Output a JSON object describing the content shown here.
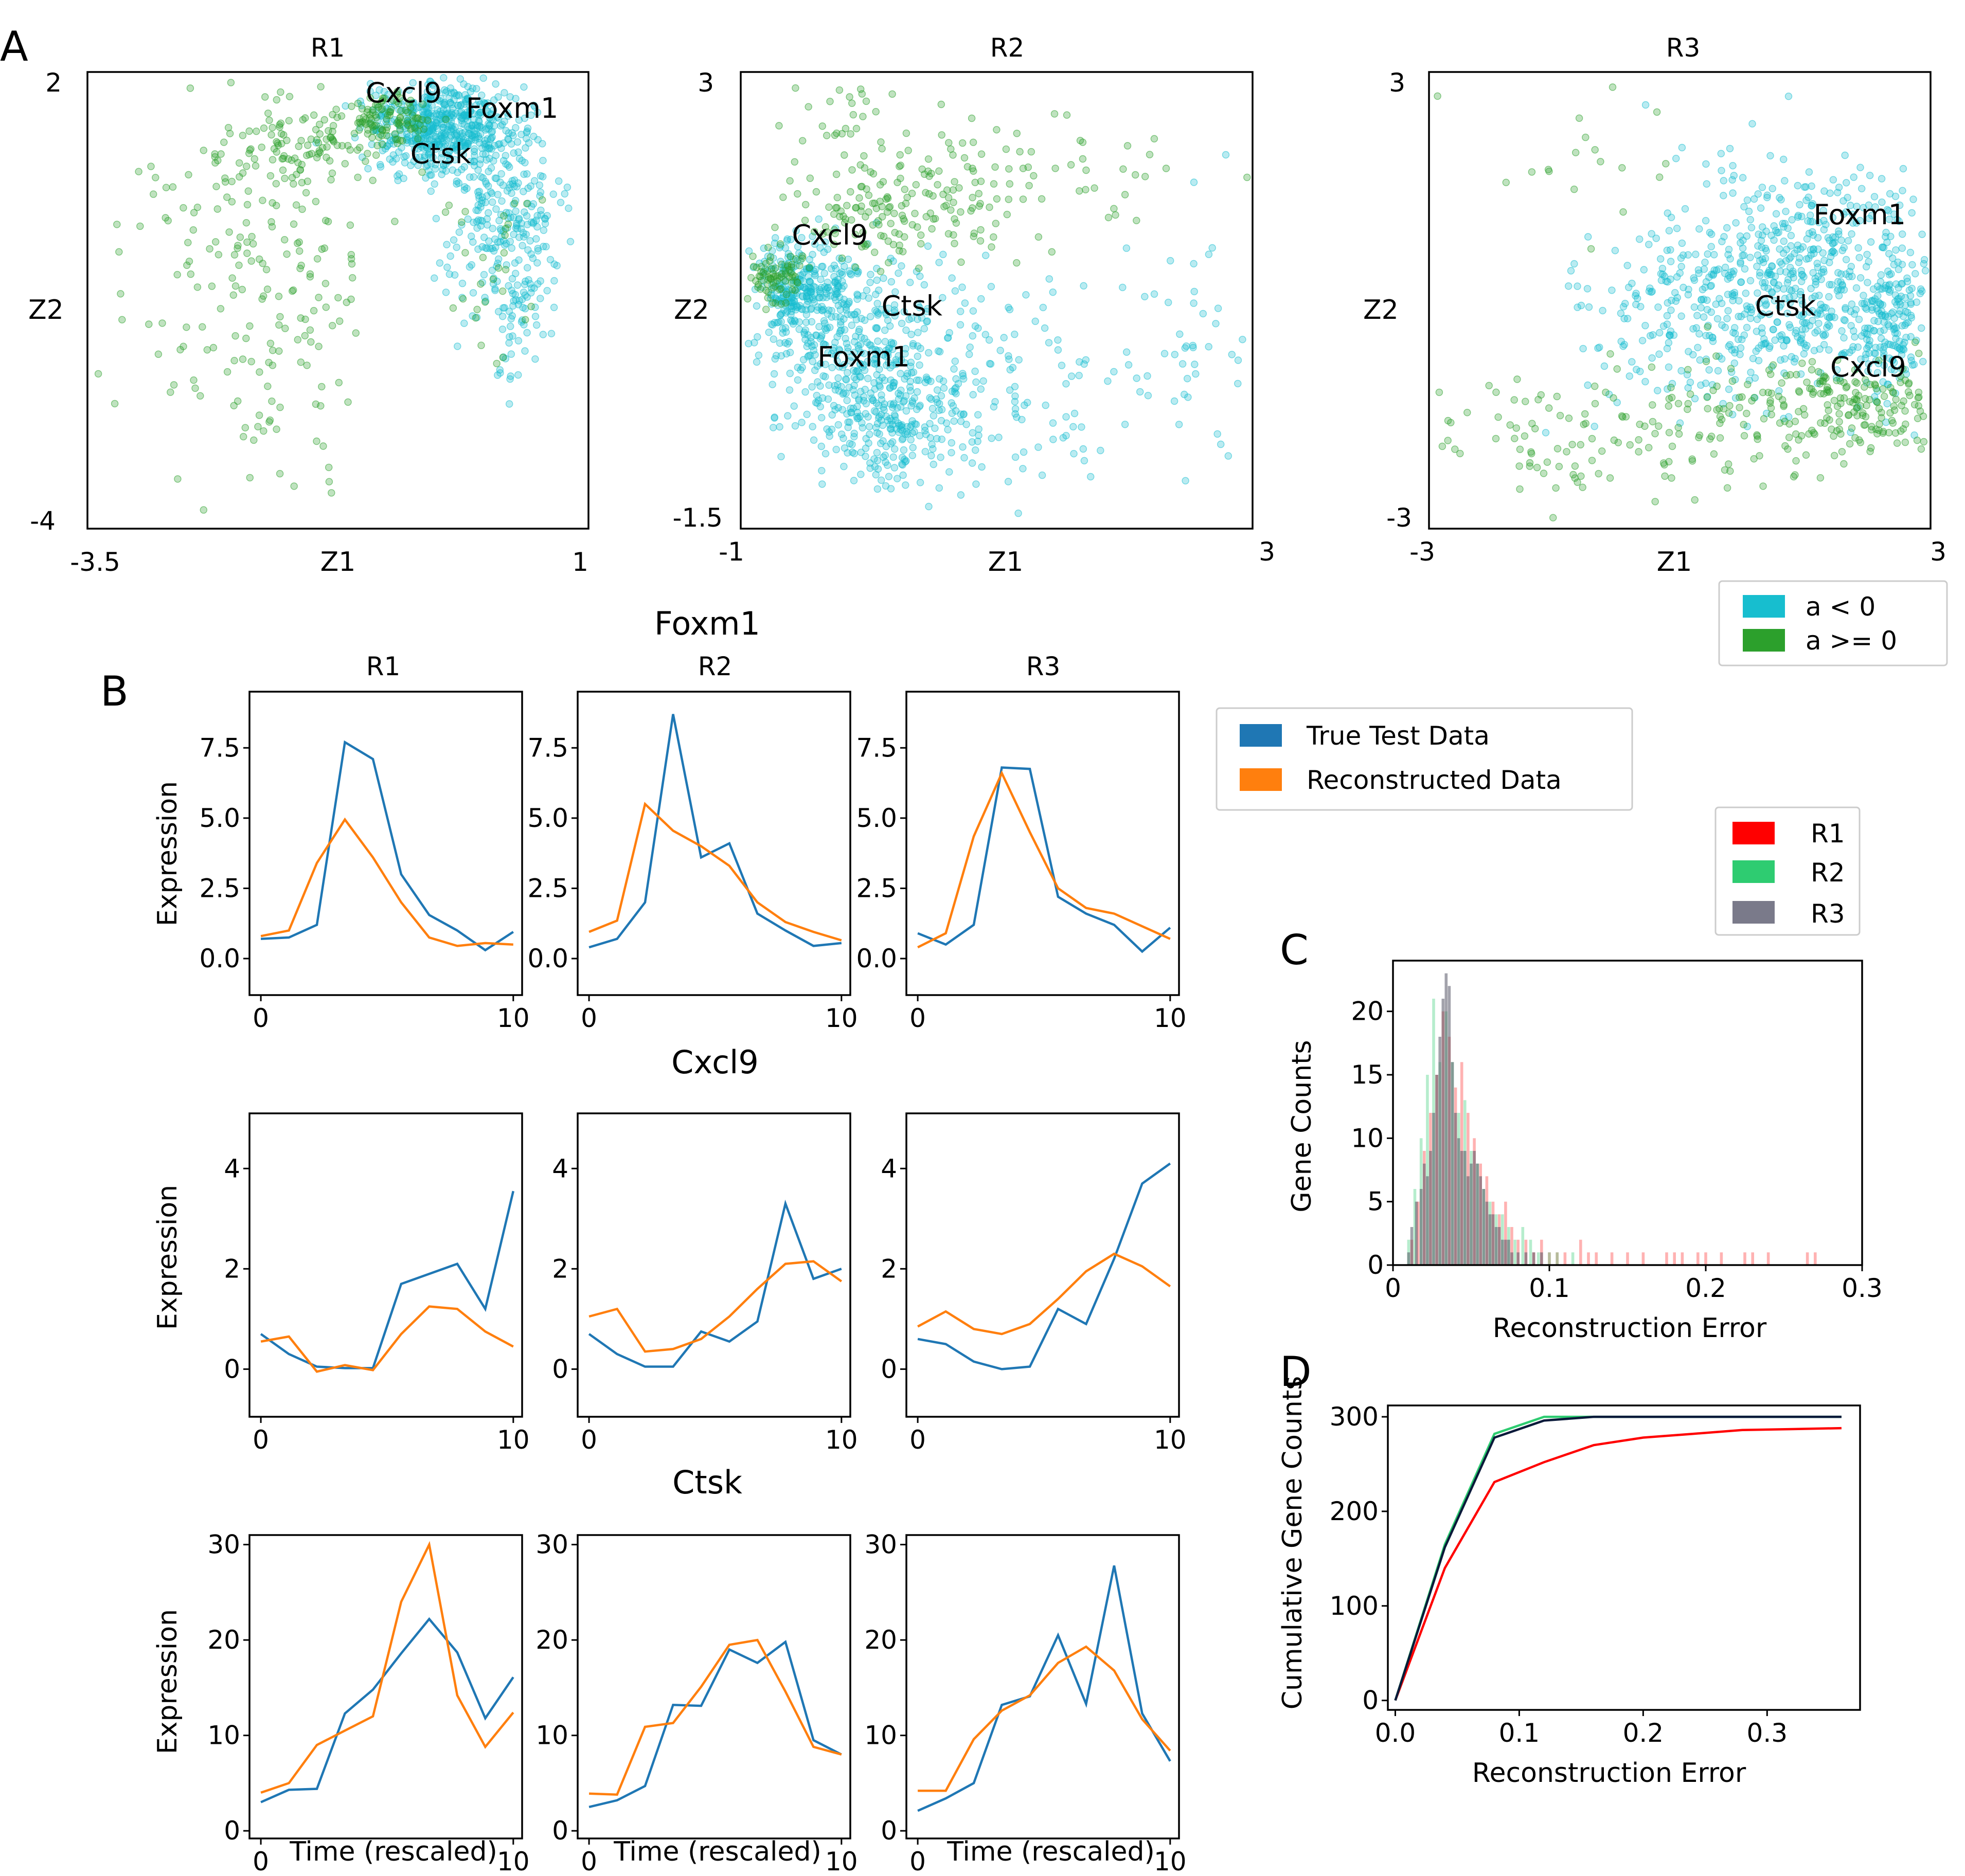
{
  "panel_letters": {
    "a": "A",
    "b": "B",
    "c": "C",
    "d": "D"
  },
  "colors": {
    "cyan": "#17becf",
    "green": "#2ca02c",
    "blue": "#1f77b4",
    "orange": "#ff7f0e",
    "r1": "#ff0000",
    "r2": "#2ecc71",
    "r3": "#555566"
  },
  "chart_data": [
    {
      "id": "A",
      "type": "scatter",
      "xlabel": "Z1",
      "ylabel": "Z2",
      "legend": {
        "placement": "bottom-right",
        "entries": [
          "a  <  0",
          "a >= 0"
        ]
      },
      "subplots": [
        {
          "title": "R1",
          "xlim": [
            -3.5,
            1
          ],
          "ylim": [
            -4,
            2
          ],
          "xtick_labels": [
            "-3.5",
            "1"
          ],
          "ytick_labels": [
            "2",
            "-4"
          ],
          "gene_labels": [
            {
              "name": "Cxcl9",
              "x": -1.0,
              "y": 1.6
            },
            {
              "name": "Foxm1",
              "x": -0.1,
              "y": 1.4
            },
            {
              "name": "Ctsk",
              "x": -0.6,
              "y": 0.8
            }
          ]
        },
        {
          "title": "R2",
          "xlim": [
            -1,
            3
          ],
          "ylim": [
            -1.5,
            3
          ],
          "xtick_labels": [
            "-1",
            "3"
          ],
          "ytick_labels": [
            "3",
            "-1.5"
          ],
          "gene_labels": [
            {
              "name": "Cxcl9",
              "x": -0.6,
              "y": 1.3
            },
            {
              "name": "Ctsk",
              "x": 0.1,
              "y": 0.6
            },
            {
              "name": "Foxm1",
              "x": -0.4,
              "y": 0.1
            }
          ]
        },
        {
          "title": "R3",
          "xlim": [
            -3,
            3
          ],
          "ylim": [
            -3,
            3
          ],
          "xtick_labels": [
            "-3",
            "3"
          ],
          "ytick_labels": [
            "3",
            "-3"
          ],
          "gene_labels": [
            {
              "name": "Foxm1",
              "x": 1.6,
              "y": 1.0
            },
            {
              "name": "Ctsk",
              "x": 0.9,
              "y": -0.2
            },
            {
              "name": "Cxcl9",
              "x": 1.8,
              "y": -1.0
            }
          ]
        }
      ]
    },
    {
      "id": "B",
      "type": "line",
      "xlabel": "Time (rescaled)",
      "ylabel": "Expression",
      "columns": [
        "R1",
        "R2",
        "R3"
      ],
      "legend": {
        "placement": "right",
        "entries": [
          "True Test Data",
          "Reconstructed Data"
        ]
      },
      "x": [
        0,
        1.11,
        2.22,
        3.33,
        4.44,
        5.56,
        6.67,
        7.78,
        8.89,
        10
      ],
      "rows": [
        {
          "gene": "Foxm1",
          "ylim": [
            -1.3,
            9.5
          ],
          "yticks": [
            0,
            2.5,
            5,
            7.5
          ],
          "ytick_labels": [
            "0.0",
            "2.5",
            "5.0",
            "7.5"
          ],
          "panels": [
            {
              "true": [
                0.7,
                0.75,
                1.2,
                7.7,
                7.1,
                3.0,
                1.55,
                1.0,
                0.3,
                0.95
              ],
              "recon": [
                0.8,
                1.0,
                3.4,
                4.95,
                3.6,
                2.0,
                0.75,
                0.45,
                0.55,
                0.5
              ]
            },
            {
              "true": [
                0.4,
                0.7,
                2.0,
                8.7,
                3.6,
                4.1,
                1.6,
                1.0,
                0.45,
                0.55
              ],
              "recon": [
                0.95,
                1.35,
                5.5,
                4.55,
                4.0,
                3.3,
                2.0,
                1.3,
                0.95,
                0.65
              ]
            },
            {
              "true": [
                0.9,
                0.5,
                1.2,
                6.8,
                6.75,
                2.2,
                1.6,
                1.2,
                0.25,
                1.1
              ],
              "recon": [
                0.4,
                0.9,
                4.35,
                6.6,
                4.5,
                2.5,
                1.8,
                1.6,
                1.15,
                0.7
              ]
            }
          ]
        },
        {
          "gene": "Cxcl9",
          "ylim": [
            -0.95,
            5.1
          ],
          "yticks": [
            0,
            2,
            4
          ],
          "ytick_labels": [
            "0",
            "2",
            "4"
          ],
          "panels": [
            {
              "true": [
                0.7,
                0.3,
                0.05,
                0.02,
                0.02,
                1.7,
                1.9,
                2.1,
                1.2,
                3.55
              ],
              "recon": [
                0.55,
                0.65,
                -0.05,
                0.08,
                -0.02,
                0.7,
                1.25,
                1.2,
                0.75,
                0.45
              ]
            },
            {
              "true": [
                0.7,
                0.3,
                0.05,
                0.05,
                0.75,
                0.55,
                0.95,
                3.3,
                1.8,
                2.0
              ],
              "recon": [
                1.05,
                1.2,
                0.35,
                0.4,
                0.6,
                1.05,
                1.6,
                2.1,
                2.15,
                1.75
              ]
            },
            {
              "true": [
                0.6,
                0.5,
                0.15,
                0.0,
                0.05,
                1.2,
                0.9,
                2.2,
                3.7,
                4.1
              ],
              "recon": [
                0.85,
                1.15,
                0.8,
                0.7,
                0.9,
                1.4,
                1.95,
                2.3,
                2.05,
                1.65
              ]
            }
          ]
        },
        {
          "gene": "Ctsk",
          "ylim": [
            -0.8,
            31
          ],
          "yticks": [
            0,
            10,
            20,
            30
          ],
          "ytick_labels": [
            "0",
            "10",
            "20",
            "30"
          ],
          "panels": [
            {
              "true": [
                3.0,
                4.3,
                4.4,
                12.3,
                14.8,
                18.6,
                22.2,
                18.7,
                11.8,
                16.1
              ],
              "recon": [
                4.0,
                5.0,
                9.0,
                10.5,
                12.0,
                24.0,
                30.0,
                14.2,
                8.8,
                12.4
              ],
              "xtick_labels": [
                "0",
                "10"
              ]
            },
            {
              "true": [
                2.5,
                3.2,
                4.7,
                13.2,
                13.1,
                19.0,
                17.6,
                19.8,
                9.5,
                8.0
              ],
              "recon": [
                3.9,
                3.8,
                10.9,
                11.3,
                15.1,
                19.5,
                20.0,
                14.6,
                8.8,
                8.0
              ],
              "xtick_labels": [
                "0",
                "10"
              ]
            },
            {
              "true": [
                2.1,
                3.4,
                5.0,
                13.2,
                14.1,
                20.5,
                13.3,
                27.8,
                12.3,
                7.3
              ],
              "recon": [
                4.2,
                4.2,
                9.6,
                12.6,
                14.2,
                17.6,
                19.3,
                16.8,
                11.7,
                8.4
              ],
              "xtick_labels": [
                "0",
                "10"
              ]
            }
          ]
        }
      ]
    },
    {
      "id": "C",
      "type": "histogram",
      "xlabel": "Reconstruction Error",
      "ylabel": "Gene Counts",
      "xlim": [
        0,
        0.3
      ],
      "ylim": [
        0,
        24
      ],
      "xticks": [
        0,
        0.1,
        0.2,
        0.3
      ],
      "xtick_labels": [
        "0",
        "0.1",
        "0.2",
        "0.3"
      ],
      "yticks": [
        0,
        5,
        10,
        15,
        20
      ],
      "ytick_labels": [
        "0",
        "5",
        "10",
        "15",
        "20"
      ],
      "legend": {
        "placement": "top-right",
        "entries": [
          "R1",
          "R2",
          "R3"
        ]
      },
      "bin_width": 0.00185,
      "series": [
        {
          "name": "R1",
          "counts": [
            [
              0.012,
              2
            ],
            [
              0.016,
              5
            ],
            [
              0.02,
              9
            ],
            [
              0.024,
              12
            ],
            [
              0.028,
              15
            ],
            [
              0.032,
              20
            ],
            [
              0.036,
              18
            ],
            [
              0.04,
              14
            ],
            [
              0.044,
              16
            ],
            [
              0.048,
              12
            ],
            [
              0.052,
              10
            ],
            [
              0.056,
              8
            ],
            [
              0.06,
              7
            ],
            [
              0.064,
              5
            ],
            [
              0.068,
              4
            ],
            [
              0.072,
              5
            ],
            [
              0.076,
              3
            ],
            [
              0.08,
              2
            ],
            [
              0.085,
              2
            ],
            [
              0.09,
              1
            ],
            [
              0.095,
              2
            ],
            [
              0.1,
              1
            ],
            [
              0.105,
              1
            ],
            [
              0.11,
              1
            ],
            [
              0.12,
              2
            ],
            [
              0.125,
              1
            ],
            [
              0.13,
              1
            ],
            [
              0.14,
              1
            ],
            [
              0.15,
              1
            ],
            [
              0.16,
              1
            ],
            [
              0.175,
              1
            ],
            [
              0.18,
              1
            ],
            [
              0.185,
              1
            ],
            [
              0.195,
              1
            ],
            [
              0.2,
              1
            ],
            [
              0.21,
              1
            ],
            [
              0.225,
              1
            ],
            [
              0.23,
              1
            ],
            [
              0.24,
              1
            ],
            [
              0.265,
              1
            ],
            [
              0.27,
              1
            ]
          ]
        },
        {
          "name": "R2",
          "counts": [
            [
              0.01,
              2
            ],
            [
              0.014,
              6
            ],
            [
              0.018,
              10
            ],
            [
              0.022,
              15
            ],
            [
              0.026,
              21
            ],
            [
              0.03,
              16
            ],
            [
              0.034,
              20
            ],
            [
              0.038,
              16
            ],
            [
              0.042,
              12
            ],
            [
              0.046,
              13
            ],
            [
              0.05,
              9
            ],
            [
              0.054,
              8
            ],
            [
              0.058,
              6
            ],
            [
              0.062,
              5
            ],
            [
              0.066,
              4
            ],
            [
              0.07,
              4
            ],
            [
              0.074,
              3
            ],
            [
              0.078,
              2
            ],
            [
              0.083,
              3
            ],
            [
              0.088,
              2
            ],
            [
              0.093,
              1
            ],
            [
              0.1,
              1
            ],
            [
              0.105,
              1
            ],
            [
              0.115,
              1
            ]
          ]
        },
        {
          "name": "R3",
          "counts": [
            [
              0.01,
              1
            ],
            [
              0.012,
              3
            ],
            [
              0.015,
              5
            ],
            [
              0.018,
              6
            ],
            [
              0.02,
              8
            ],
            [
              0.022,
              7
            ],
            [
              0.024,
              9
            ],
            [
              0.026,
              12
            ],
            [
              0.028,
              15
            ],
            [
              0.03,
              18
            ],
            [
              0.032,
              21
            ],
            [
              0.034,
              23
            ],
            [
              0.036,
              22
            ],
            [
              0.038,
              16
            ],
            [
              0.04,
              12
            ],
            [
              0.042,
              10
            ],
            [
              0.044,
              9
            ],
            [
              0.046,
              9
            ],
            [
              0.048,
              7
            ],
            [
              0.05,
              8
            ],
            [
              0.052,
              9
            ],
            [
              0.054,
              8
            ],
            [
              0.056,
              7
            ],
            [
              0.058,
              6
            ],
            [
              0.06,
              5
            ],
            [
              0.062,
              4
            ],
            [
              0.064,
              4
            ],
            [
              0.066,
              3
            ],
            [
              0.068,
              3
            ],
            [
              0.07,
              2
            ],
            [
              0.072,
              2
            ],
            [
              0.074,
              2
            ],
            [
              0.076,
              1
            ],
            [
              0.08,
              1
            ],
            [
              0.085,
              1
            ],
            [
              0.09,
              1
            ],
            [
              0.095,
              1
            ]
          ]
        }
      ]
    },
    {
      "id": "D",
      "type": "line",
      "xlabel": "Reconstruction Error",
      "ylabel": "Cumulative Gene Counts",
      "xlim": [
        -0.006,
        0.375
      ],
      "ylim": [
        -10,
        312
      ],
      "xticks": [
        0,
        0.1,
        0.2,
        0.3
      ],
      "xtick_labels": [
        "0.0",
        "0.1",
        "0.2",
        "0.3"
      ],
      "yticks": [
        0,
        100,
        200,
        300
      ],
      "ytick_labels": [
        "0",
        "100",
        "200",
        "300"
      ],
      "series": [
        {
          "name": "R1",
          "x": [
            0,
            0.04,
            0.08,
            0.12,
            0.16,
            0.2,
            0.24,
            0.28,
            0.32,
            0.36
          ],
          "y": [
            0,
            140,
            231,
            252,
            270,
            278,
            282,
            286,
            287,
            288
          ]
        },
        {
          "name": "R2",
          "x": [
            0,
            0.04,
            0.08,
            0.12,
            0.16,
            0.2,
            0.24,
            0.28,
            0.32,
            0.36
          ],
          "y": [
            0,
            165,
            282,
            300,
            300,
            300,
            300,
            300,
            300,
            300
          ]
        },
        {
          "name": "R3",
          "x": [
            0,
            0.04,
            0.08,
            0.12,
            0.16,
            0.2,
            0.24,
            0.28,
            0.32,
            0.36
          ],
          "y": [
            0,
            162,
            278,
            296,
            300,
            300,
            300,
            300,
            300,
            300
          ]
        }
      ]
    }
  ]
}
